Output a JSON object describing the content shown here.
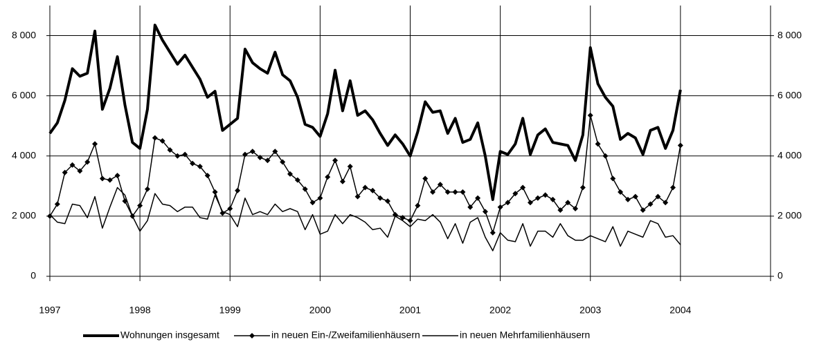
{
  "chart_data": {
    "type": "line",
    "categories": [
      "1997",
      null,
      null,
      null,
      null,
      null,
      null,
      null,
      null,
      null,
      null,
      null,
      "1998",
      null,
      null,
      null,
      null,
      null,
      null,
      null,
      null,
      null,
      null,
      null,
      "1999",
      null,
      null,
      null,
      null,
      null,
      null,
      null,
      null,
      null,
      null,
      null,
      "2000",
      null,
      null,
      null,
      null,
      null,
      null,
      null,
      null,
      null,
      null,
      null,
      "2001",
      null,
      null,
      null,
      null,
      null,
      null,
      null,
      null,
      null,
      null,
      null,
      "2002",
      null,
      null,
      null,
      null,
      null,
      null,
      null,
      null,
      null,
      null,
      null,
      "2003",
      null,
      null,
      null,
      null,
      null,
      null,
      null,
      null,
      null,
      null,
      null,
      "2004"
    ],
    "series": [
      {
        "name": "Wohnungen insgesamt",
        "color": "#000000",
        "values": [
          4750,
          5100,
          5850,
          6900,
          6650,
          6750,
          8150,
          5550,
          6250,
          7300,
          5700,
          4450,
          4250,
          5550,
          8350,
          7850,
          7450,
          7050,
          7350,
          6950,
          6550,
          5950,
          6150,
          4850,
          5050,
          5250,
          7550,
          7100,
          6900,
          6750,
          7450,
          6700,
          6500,
          5950,
          5050,
          4950,
          4650,
          5400,
          6850,
          5500,
          6500,
          5350,
          5500,
          5200,
          4750,
          4350,
          4700,
          4400,
          4000,
          4800,
          5800,
          5450,
          5500,
          4750,
          5250,
          4450,
          4550,
          5100,
          4000,
          2550,
          4150,
          4050,
          4400,
          5250,
          4050,
          4700,
          4900,
          4450,
          4400,
          4350,
          3850,
          4700,
          7600,
          6400,
          5950,
          5650,
          4550,
          4750,
          4600,
          4050,
          4850,
          4950,
          4250,
          4850,
          6200
        ]
      },
      {
        "name": "in neuen Ein-/Zweifamilienhäusern",
        "color": "#000000",
        "marker": "diamond",
        "values": [
          2000,
          2400,
          3450,
          3700,
          3500,
          3800,
          4400,
          3250,
          3200,
          3350,
          2500,
          2000,
          2350,
          2900,
          4600,
          4500,
          4200,
          4000,
          4050,
          3750,
          3650,
          3350,
          2800,
          2100,
          2250,
          2850,
          4050,
          4150,
          3950,
          3850,
          4150,
          3800,
          3400,
          3200,
          2900,
          2450,
          2600,
          3300,
          3850,
          3150,
          3650,
          2650,
          2950,
          2850,
          2600,
          2500,
          2050,
          1950,
          1850,
          2350,
          3250,
          2800,
          3050,
          2800,
          2800,
          2800,
          2300,
          2600,
          2150,
          1450,
          2300,
          2450,
          2750,
          2950,
          2450,
          2600,
          2700,
          2550,
          2200,
          2450,
          2250,
          2950,
          5350,
          4400,
          4000,
          3250,
          2800,
          2550,
          2650,
          2200,
          2400,
          2650,
          2450,
          2950,
          4350
        ]
      },
      {
        "name": "in neuen Mehrfamilienhäusern",
        "color": "#000000",
        "values": [
          2050,
          1800,
          1750,
          2400,
          2350,
          1950,
          2650,
          1600,
          2300,
          2950,
          2700,
          2000,
          1500,
          1850,
          2750,
          2400,
          2350,
          2150,
          2300,
          2300,
          1950,
          1900,
          2700,
          2150,
          2050,
          1650,
          2600,
          2050,
          2150,
          2050,
          2400,
          2150,
          2250,
          2150,
          1550,
          2050,
          1400,
          1500,
          2050,
          1750,
          2050,
          1950,
          1800,
          1550,
          1600,
          1300,
          2000,
          1850,
          1650,
          1900,
          1850,
          2050,
          1800,
          1250,
          1750,
          1100,
          1800,
          1950,
          1300,
          850,
          1450,
          1200,
          1150,
          1750,
          1000,
          1500,
          1500,
          1300,
          1750,
          1350,
          1200,
          1200,
          1350,
          1250,
          1150,
          1650,
          1000,
          1500,
          1400,
          1300,
          1850,
          1750,
          1300,
          1350,
          1050
        ]
      }
    ],
    "ylim": [
      0,
      9000
    ],
    "yticks": [
      0,
      {
        "value": 2000,
        "label": "2 000"
      },
      {
        "value": 4000,
        "label": "4 000"
      },
      {
        "value": 6000,
        "label": "6 000"
      },
      {
        "value": 8000,
        "label": "8 000"
      }
    ],
    "y2lim": [
      0,
      9000
    ],
    "y2ticks": [
      0,
      {
        "value": 2000,
        "label": "2 000"
      },
      {
        "value": 4000,
        "label": "4 000"
      },
      {
        "value": 6000,
        "label": "6 000"
      },
      {
        "value": 8000,
        "label": "8 000"
      }
    ],
    "grid": true,
    "legend": "bottom"
  }
}
